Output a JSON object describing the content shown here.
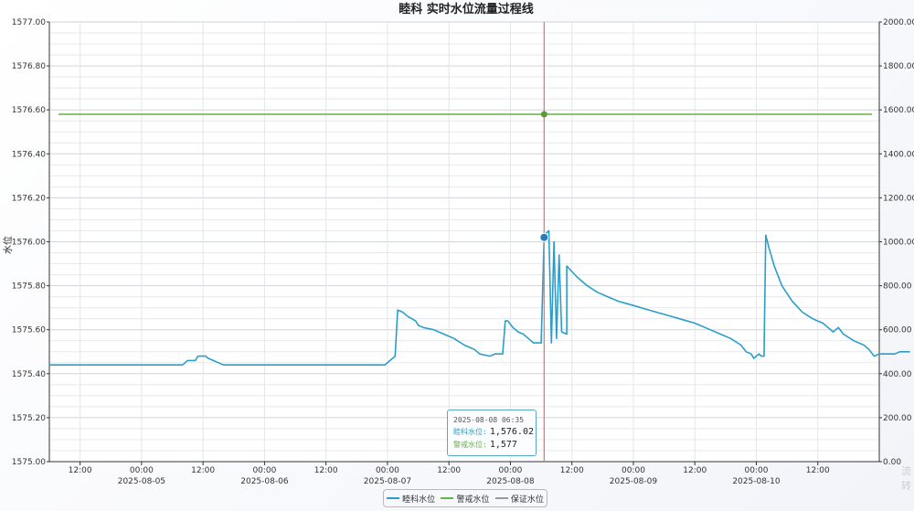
{
  "chart_data": {
    "type": "line",
    "title": "睦科 实时水位流量过程线",
    "ylabel": "水位",
    "y_left": {
      "ylim": [
        1575.0,
        1577.0
      ],
      "ticks": [
        "1575.00",
        "1575.20",
        "1575.40",
        "1575.60",
        "1575.80",
        "1576.00",
        "1576.20",
        "1576.40",
        "1576.60",
        "1576.80",
        "1577.00"
      ]
    },
    "y_right": {
      "ylim": [
        0,
        2000
      ],
      "ticks": [
        "0.00",
        "200.00",
        "400.00",
        "600.00",
        "800.00",
        "1000.00",
        "1200.00",
        "1400.00",
        "1600.00",
        "1800.00",
        "2000.00"
      ]
    },
    "x_range": [
      "2025-08-04 06:00",
      "2025-08-11 00:00"
    ],
    "x_ticks": [
      {
        "time": "2025-08-04 12:00",
        "label": "12:00",
        "date": ""
      },
      {
        "time": "2025-08-05 00:00",
        "label": "00:00",
        "date": "2025-08-05"
      },
      {
        "time": "2025-08-05 12:00",
        "label": "12:00",
        "date": ""
      },
      {
        "time": "2025-08-06 00:00",
        "label": "00:00",
        "date": "2025-08-06"
      },
      {
        "time": "2025-08-06 12:00",
        "label": "12:00",
        "date": ""
      },
      {
        "time": "2025-08-07 00:00",
        "label": "00:00",
        "date": "2025-08-07"
      },
      {
        "time": "2025-08-07 12:00",
        "label": "12:00",
        "date": ""
      },
      {
        "time": "2025-08-08 00:00",
        "label": "00:00",
        "date": "2025-08-08"
      },
      {
        "time": "2025-08-08 12:00",
        "label": "12:00",
        "date": ""
      },
      {
        "time": "2025-08-09 00:00",
        "label": "00:00",
        "date": "2025-08-09"
      },
      {
        "time": "2025-08-09 12:00",
        "label": "12:00",
        "date": ""
      },
      {
        "time": "2025-08-10 00:00",
        "label": "00:00",
        "date": "2025-08-10"
      },
      {
        "time": "2025-08-10 12:00",
        "label": "12:00",
        "date": ""
      }
    ],
    "grid": true,
    "legend_position": "bottom-center",
    "series": [
      {
        "name": "睦科水位",
        "color": "#2a9ec9",
        "points": [
          [
            "2025-08-04 06:00",
            1575.44
          ],
          [
            "2025-08-04 18:00",
            1575.44
          ],
          [
            "2025-08-05 00:00",
            1575.44
          ],
          [
            "2025-08-05 06:00",
            1575.44
          ],
          [
            "2025-08-05 08:00",
            1575.44
          ],
          [
            "2025-08-05 09:00",
            1575.46
          ],
          [
            "2025-08-05 10:30",
            1575.46
          ],
          [
            "2025-08-05 11:00",
            1575.48
          ],
          [
            "2025-08-05 12:30",
            1575.48
          ],
          [
            "2025-08-05 13:00",
            1575.47
          ],
          [
            "2025-08-05 14:00",
            1575.46
          ],
          [
            "2025-08-05 15:00",
            1575.45
          ],
          [
            "2025-08-05 16:00",
            1575.44
          ],
          [
            "2025-08-06 00:00",
            1575.44
          ],
          [
            "2025-08-06 12:00",
            1575.44
          ],
          [
            "2025-08-06 22:00",
            1575.44
          ],
          [
            "2025-08-06 23:30",
            1575.44
          ],
          [
            "2025-08-07 00:30",
            1575.46
          ],
          [
            "2025-08-07 01:30",
            1575.48
          ],
          [
            "2025-08-07 02:00",
            1575.69
          ],
          [
            "2025-08-07 03:00",
            1575.68
          ],
          [
            "2025-08-07 04:00",
            1575.66
          ],
          [
            "2025-08-07 05:30",
            1575.64
          ],
          [
            "2025-08-07 06:00",
            1575.62
          ],
          [
            "2025-08-07 07:00",
            1575.61
          ],
          [
            "2025-08-07 09:00",
            1575.6
          ],
          [
            "2025-08-07 11:00",
            1575.58
          ],
          [
            "2025-08-07 13:00",
            1575.56
          ],
          [
            "2025-08-07 15:00",
            1575.53
          ],
          [
            "2025-08-07 17:00",
            1575.51
          ],
          [
            "2025-08-07 18:00",
            1575.49
          ],
          [
            "2025-08-07 20:00",
            1575.48
          ],
          [
            "2025-08-07 21:00",
            1575.49
          ],
          [
            "2025-08-07 22:30",
            1575.49
          ],
          [
            "2025-08-07 23:00",
            1575.64
          ],
          [
            "2025-08-07 23:30",
            1575.64
          ],
          [
            "2025-08-08 00:30",
            1575.61
          ],
          [
            "2025-08-08 01:30",
            1575.59
          ],
          [
            "2025-08-08 02:30",
            1575.58
          ],
          [
            "2025-08-08 03:30",
            1575.56
          ],
          [
            "2025-08-08 04:30",
            1575.54
          ],
          [
            "2025-08-08 06:00",
            1575.54
          ],
          [
            "2025-08-08 08:00",
            1575.54
          ],
          [
            "2025-08-08 09:00",
            1575.56
          ],
          [
            "2025-08-08 10:00",
            1575.59
          ],
          [
            "2025-08-08 11:00",
            1575.58
          ],
          [
            "2025-08-08 06:35",
            1576.02
          ],
          [
            "2025-08-08 07:00",
            1576.04
          ],
          [
            "2025-08-08 07:30",
            1576.05
          ],
          [
            "2025-08-08 08:30",
            1576.0
          ],
          [
            "2025-08-08 09:30",
            1575.94
          ],
          [
            "2025-08-08 11:00",
            1575.89
          ],
          [
            "2025-08-08 13:00",
            1575.84
          ],
          [
            "2025-08-08 15:00",
            1575.8
          ],
          [
            "2025-08-08 17:00",
            1575.77
          ],
          [
            "2025-08-08 19:00",
            1575.75
          ],
          [
            "2025-08-08 21:00",
            1575.73
          ],
          [
            "2025-08-09 00:00",
            1575.71
          ],
          [
            "2025-08-09 03:00",
            1575.69
          ],
          [
            "2025-08-09 06:00",
            1575.67
          ],
          [
            "2025-08-09 09:00",
            1575.65
          ],
          [
            "2025-08-09 12:00",
            1575.63
          ],
          [
            "2025-08-09 15:00",
            1575.6
          ],
          [
            "2025-08-09 17:00",
            1575.58
          ],
          [
            "2025-08-09 19:00",
            1575.56
          ],
          [
            "2025-08-09 21:00",
            1575.53
          ],
          [
            "2025-08-09 22:00",
            1575.5
          ],
          [
            "2025-08-09 23:00",
            1575.49
          ],
          [
            "2025-08-09 23:30",
            1575.47
          ],
          [
            "2025-08-10 00:30",
            1575.49
          ],
          [
            "2025-08-10 01:00",
            1575.48
          ],
          [
            "2025-08-10 01:30",
            1575.48
          ],
          [
            "2025-08-10 01:50",
            1576.03
          ],
          [
            "2025-08-10 02:30",
            1575.97
          ],
          [
            "2025-08-10 03:30",
            1575.89
          ],
          [
            "2025-08-10 05:00",
            1575.8
          ],
          [
            "2025-08-10 07:00",
            1575.73
          ],
          [
            "2025-08-10 09:00",
            1575.68
          ],
          [
            "2025-08-10 11:00",
            1575.65
          ],
          [
            "2025-08-10 13:00",
            1575.63
          ],
          [
            "2025-08-10 14:00",
            1575.61
          ],
          [
            "2025-08-10 15:00",
            1575.59
          ],
          [
            "2025-08-10 16:00",
            1575.61
          ],
          [
            "2025-08-10 17:00",
            1575.58
          ],
          [
            "2025-08-10 19:00",
            1575.55
          ],
          [
            "2025-08-10 21:00",
            1575.53
          ],
          [
            "2025-08-10 22:00",
            1575.51
          ],
          [
            "2025-08-10 23:00",
            1575.48
          ],
          [
            "2025-08-11 00:00",
            1575.49
          ],
          [
            "2025-08-11 03:00",
            1575.49
          ],
          [
            "2025-08-11 04:00",
            1575.5
          ],
          [
            "2025-08-11 06:00",
            1575.5
          ]
        ]
      },
      {
        "name": "警戒水位",
        "color": "#67b244",
        "constant": 1576.58
      },
      {
        "name": "保证水位",
        "color": "#999999",
        "constant": null
      }
    ],
    "crosshair": {
      "time": "2025-08-08 06:35",
      "color": "#e47a7a"
    }
  },
  "tooltip": {
    "time": "2025-08-08 06:35",
    "rows": [
      {
        "label": "睦科水位:",
        "value": "1,576.02",
        "color": "#2a9ec9"
      },
      {
        "label": "警戒水位:",
        "value": "1,577",
        "color": "#67b244"
      }
    ]
  },
  "legend": {
    "items": [
      {
        "label": "睦科水位",
        "color": "#2a9ec9"
      },
      {
        "label": "警戒水位",
        "color": "#67b244"
      },
      {
        "label": "保证水位",
        "color": "#999999"
      }
    ]
  },
  "watermark": "流\n转"
}
